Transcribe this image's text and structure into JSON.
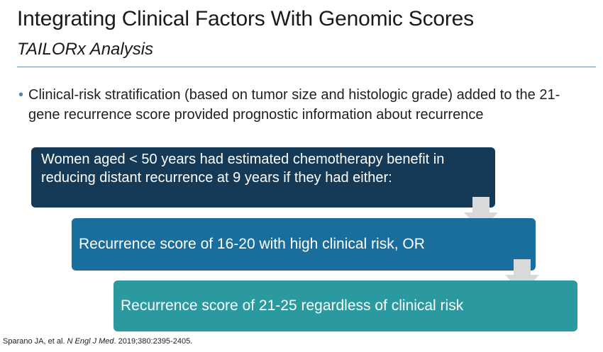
{
  "slide": {
    "title": "Integrating Clinical Factors With Genomic Scores",
    "subtitle": "TAILORx Analysis",
    "bullet": {
      "marker": "•",
      "text": "Clinical-risk stratification (based on tumor size and histologic grade) added to the 21-gene recurrence score provided prognostic information about recurrence"
    },
    "flow": {
      "box1": "Women aged < 50 years had estimated chemotherapy benefit in reducing distant recurrence at 9 years if they had either:",
      "box2": "Recurrence score of 16-20 with high clinical risk, OR",
      "box3": "Recurrence score of 21-25 regardless of clinical risk"
    },
    "citation": {
      "prefix": "Sparano JA, et al. ",
      "journal": "N Engl J Med",
      "suffix": ". 2019;380:2395-2405."
    }
  },
  "colors": {
    "box1": "#143a57",
    "box2": "#1a6e9e",
    "box3": "#2b9aa0",
    "arrow": "#d9d9d9",
    "rule": "#6d8fa8",
    "bullet": "#4a8bb5"
  }
}
